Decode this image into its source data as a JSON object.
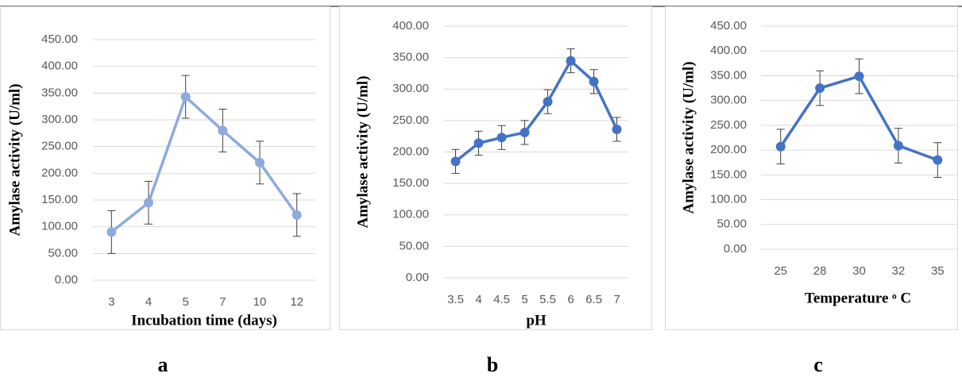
{
  "chart_data": [
    {
      "type": "line",
      "caption": "a",
      "xlabel": "Incubation time (days)",
      "ylabel": "Amylase activity (U/ml)",
      "categories": [
        "3",
        "4",
        "5",
        "7",
        "10",
        "12"
      ],
      "values": [
        90,
        145,
        343,
        280,
        220,
        122
      ],
      "errors": [
        40,
        40,
        40,
        40,
        40,
        40
      ],
      "color": "#8faadc",
      "ylim": [
        0,
        450
      ],
      "yticks": [
        {
          "value": 0,
          "label": "0.00"
        },
        {
          "value": 50,
          "label": "50.00"
        },
        {
          "value": 100,
          "label": "100.00"
        },
        {
          "value": 150,
          "label": "150.00"
        },
        {
          "value": 200,
          "label": "200.00"
        },
        {
          "value": 250,
          "label": "250.00"
        },
        {
          "value": 300,
          "label": "300.00"
        },
        {
          "value": 350,
          "label": "350.00"
        },
        {
          "value": 400,
          "label": "400.00"
        },
        {
          "value": 450,
          "label": "450.00"
        }
      ],
      "grid": true
    },
    {
      "type": "line",
      "caption": "b",
      "xlabel": "pH",
      "ylabel": "Amylase activity (U/ml)",
      "categories": [
        "3.5",
        "4",
        "4.5",
        "5",
        "5.5",
        "6",
        "6.5",
        "7"
      ],
      "values": [
        185,
        214,
        223,
        231,
        280,
        345,
        312,
        236
      ],
      "errors": [
        19,
        19,
        19,
        19,
        19,
        19,
        19,
        19
      ],
      "color": "#4472c4",
      "ylim": [
        0,
        400
      ],
      "yticks": [
        {
          "value": 0,
          "label": "0.00"
        },
        {
          "value": 50,
          "label": "50.00"
        },
        {
          "value": 100,
          "label": "100.00"
        },
        {
          "value": 150,
          "label": "150.00"
        },
        {
          "value": 200,
          "label": "200.00"
        },
        {
          "value": 250,
          "label": "250.00"
        },
        {
          "value": 300,
          "label": "300.00"
        },
        {
          "value": 350,
          "label": "350.00"
        },
        {
          "value": 400,
          "label": "400.00"
        }
      ],
      "grid": true
    },
    {
      "type": "line",
      "caption": "c",
      "xlabel": "Temperature ᵒ C",
      "ylabel": "Amylase activity (U/ml)",
      "categories": [
        "25",
        "28",
        "30",
        "32",
        "35"
      ],
      "values": [
        207,
        325,
        349,
        209,
        180
      ],
      "errors": [
        35,
        35,
        35,
        35,
        35
      ],
      "color": "#4472c4",
      "ylim": [
        0,
        450
      ],
      "yticks": [
        {
          "value": 0,
          "label": "0.00"
        },
        {
          "value": 50,
          "label": "50.00"
        },
        {
          "value": 100,
          "label": "100.00"
        },
        {
          "value": 150,
          "label": "150.00"
        },
        {
          "value": 200,
          "label": "200.00"
        },
        {
          "value": 250,
          "label": "250.00"
        },
        {
          "value": 300,
          "label": "300.00"
        },
        {
          "value": 350,
          "label": "350.00"
        },
        {
          "value": 400,
          "label": "400.00"
        },
        {
          "value": 450,
          "label": "450.00"
        }
      ],
      "grid": true
    }
  ]
}
